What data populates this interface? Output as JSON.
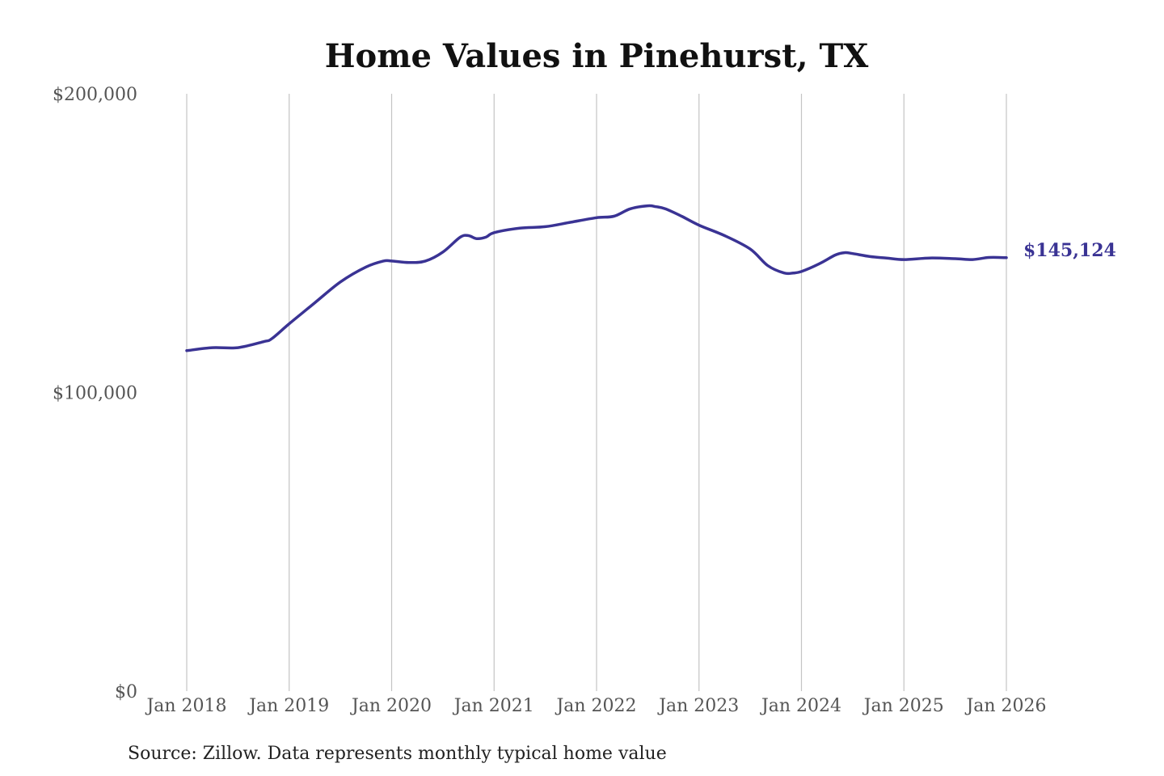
{
  "chart_data": {
    "type": "line",
    "title": "Home Values in Pinehurst, TX",
    "source": "Source: Zillow. Data represents monthly typical home value",
    "xlabel": "",
    "ylabel": "",
    "ylim": [
      0,
      200000
    ],
    "y_ticks": [
      {
        "value": 0,
        "label": "$0"
      },
      {
        "value": 100000,
        "label": "$100,000"
      },
      {
        "value": 200000,
        "label": "$200,000"
      }
    ],
    "x_ticks": [
      {
        "value": 2018,
        "label": "Jan 2018"
      },
      {
        "value": 2019,
        "label": "Jan 2019"
      },
      {
        "value": 2020,
        "label": "Jan 2020"
      },
      {
        "value": 2021,
        "label": "Jan 2021"
      },
      {
        "value": 2022,
        "label": "Jan 2022"
      },
      {
        "value": 2023,
        "label": "Jan 2023"
      },
      {
        "value": 2024,
        "label": "Jan 2024"
      },
      {
        "value": 2025,
        "label": "Jan 2025"
      },
      {
        "value": 2026,
        "label": "Jan 2026"
      }
    ],
    "xlim": [
      2018,
      2026
    ],
    "grid": {
      "vertical": true,
      "horizontal": false
    },
    "line_color": "#3a3394",
    "end_label": "$145,124",
    "series": [
      {
        "x": [
          2018.0,
          2018.25,
          2018.5,
          2018.75,
          2018.83,
          2019.0,
          2019.25,
          2019.5,
          2019.75,
          2019.92,
          2020.0,
          2020.17,
          2020.33,
          2020.5,
          2020.67,
          2020.75,
          2020.83,
          2020.92,
          2021.0,
          2021.25,
          2021.5,
          2021.75,
          2022.0,
          2022.17,
          2022.33,
          2022.5,
          2022.58,
          2022.67,
          2022.83,
          2023.0,
          2023.25,
          2023.5,
          2023.67,
          2023.83,
          2023.92,
          2024.0,
          2024.17,
          2024.33,
          2024.42,
          2024.5,
          2024.67,
          2024.83,
          2025.0,
          2025.25,
          2025.5,
          2025.67,
          2025.83,
          2026.0
        ],
        "y": [
          114000,
          115000,
          115000,
          117000,
          118000,
          123000,
          130000,
          137000,
          142000,
          144000,
          144000,
          143500,
          144000,
          147000,
          152000,
          152500,
          151500,
          152000,
          153500,
          155000,
          155500,
          157000,
          158500,
          159000,
          161500,
          162500,
          162200,
          161500,
          159000,
          156000,
          152500,
          148000,
          142500,
          140000,
          140000,
          140500,
          143000,
          146000,
          146800,
          146500,
          145500,
          145000,
          144500,
          145000,
          144800,
          144500,
          145200,
          145124
        ]
      }
    ]
  }
}
